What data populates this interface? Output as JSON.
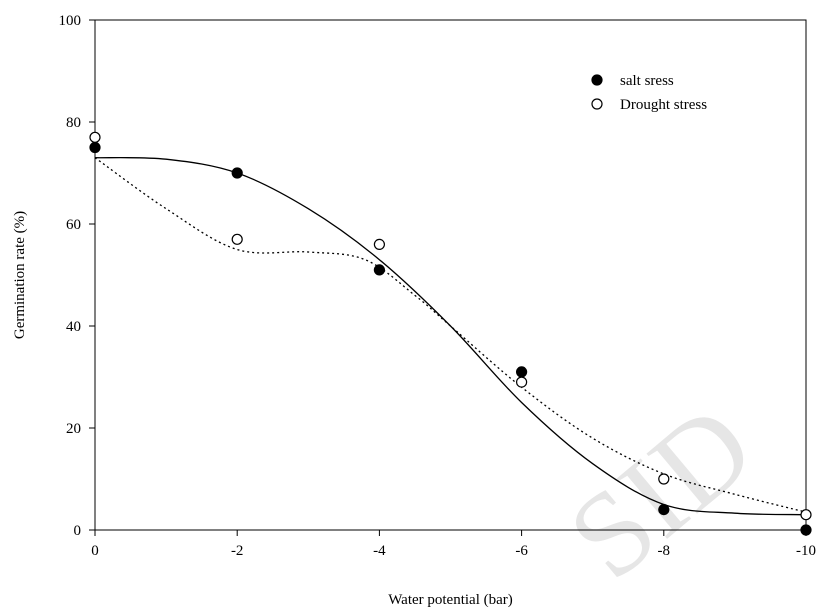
{
  "chart_data": {
    "type": "scatter",
    "title": "",
    "xlabel": "Water potential (bar)",
    "ylabel": "Germination rate (%)",
    "xlim": [
      0,
      -10
    ],
    "ylim": [
      0,
      100
    ],
    "xticks": [
      0,
      -2,
      -4,
      -6,
      -8,
      -10
    ],
    "yticks": [
      0,
      20,
      40,
      60,
      80,
      100
    ],
    "grid": false,
    "legend_position": "top-right",
    "series": [
      {
        "name": "salt sress",
        "marker": "filled-circle",
        "line_style": "solid",
        "color": "#000000",
        "x": [
          0,
          -2,
          -4,
          -6,
          -8,
          -10
        ],
        "y": [
          75,
          70,
          51,
          31,
          4,
          0
        ],
        "fit_curve": [
          [
            0,
            73
          ],
          [
            -1,
            72.7
          ],
          [
            -2,
            70
          ],
          [
            -3,
            63
          ],
          [
            -4,
            53
          ],
          [
            -5,
            40
          ],
          [
            -6,
            25
          ],
          [
            -7,
            13
          ],
          [
            -8,
            5
          ],
          [
            -9,
            3.3
          ],
          [
            -10,
            3
          ]
        ]
      },
      {
        "name": "Drought stress",
        "marker": "open-circle",
        "line_style": "dotted",
        "color": "#000000",
        "x": [
          0,
          -2,
          -4,
          -6,
          -8,
          -10
        ],
        "y": [
          77,
          57,
          56,
          29,
          10,
          3
        ],
        "fit_curve": [
          [
            0,
            73
          ],
          [
            -1,
            63
          ],
          [
            -2,
            55
          ],
          [
            -3,
            54.5
          ],
          [
            -3.8,
            53
          ],
          [
            -4.5,
            46
          ],
          [
            -5,
            40
          ],
          [
            -6,
            28
          ],
          [
            -7,
            18
          ],
          [
            -8,
            11
          ],
          [
            -9,
            7
          ],
          [
            -10,
            3.5
          ]
        ]
      }
    ]
  },
  "watermark": {
    "text": "SID",
    "color": "#e6e6e6"
  }
}
